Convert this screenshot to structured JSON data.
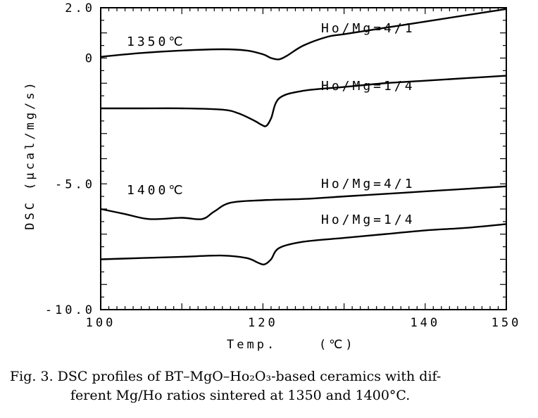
{
  "chart_data": {
    "type": "line",
    "xlabel": "Temp.",
    "xunit": "(℃)",
    "ylabel": "DSC (μcal/mg/s)",
    "xlim": [
      100,
      150
    ],
    "ylim": [
      -10,
      2.0
    ],
    "x_ticks": [
      "100",
      "120",
      "140",
      "150"
    ],
    "y_ticks": [
      "2.0",
      "0",
      "-5.0",
      "-10.0"
    ],
    "annotations": [
      "1350℃",
      "Ho/Mg=4/1",
      "Ho/Mg=1/4",
      "1400℃",
      "Ho/Mg=4/1",
      "Ho/Mg=1/4"
    ],
    "series": [
      {
        "name": "Ho/Mg=4/1 (1350℃)",
        "x": [
          100,
          105,
          110,
          115,
          118,
          120,
          121,
          122,
          123,
          125,
          128,
          130,
          135,
          140,
          145,
          150
        ],
        "y": [
          0.05,
          0.2,
          0.3,
          0.35,
          0.3,
          0.15,
          0.0,
          -0.05,
          0.1,
          0.5,
          0.85,
          0.95,
          1.2,
          1.45,
          1.7,
          1.95
        ]
      },
      {
        "name": "Ho/Mg=1/4 (1350℃)",
        "x": [
          100,
          105,
          110,
          115,
          117,
          119,
          119.8,
          120.4,
          121,
          122,
          125,
          130,
          135,
          140,
          145,
          150
        ],
        "y": [
          -2.0,
          -2.0,
          -2.0,
          -2.05,
          -2.2,
          -2.5,
          -2.65,
          -2.7,
          -2.4,
          -1.6,
          -1.3,
          -1.15,
          -1.0,
          -0.9,
          -0.8,
          -0.7
        ]
      },
      {
        "name": "Ho/Mg=4/1 (1400℃)",
        "x": [
          100,
          103,
          106,
          110,
          112.5,
          114,
          116,
          120,
          125,
          130,
          135,
          140,
          145,
          150
        ],
        "y": [
          -6.0,
          -6.2,
          -6.4,
          -6.35,
          -6.4,
          -6.1,
          -5.75,
          -5.65,
          -5.6,
          -5.5,
          -5.4,
          -5.3,
          -5.2,
          -5.1
        ]
      },
      {
        "name": "Ho/Mg=1/4 (1400℃)",
        "x": [
          100,
          105,
          110,
          115,
          118,
          119.5,
          120.2,
          121,
          122,
          125,
          130,
          135,
          140,
          145,
          150
        ],
        "y": [
          -8.0,
          -7.95,
          -7.9,
          -7.85,
          -7.95,
          -8.15,
          -8.2,
          -8.0,
          -7.55,
          -7.3,
          -7.15,
          -7.0,
          -6.85,
          -6.75,
          -6.6
        ]
      }
    ]
  },
  "caption": {
    "line1": "Fig. 3.   DSC profiles of BT–MgO–Ho₂O₃-based ceramics with dif-",
    "line2": "ferent Mg/Ho ratios sintered at 1350 and 1400°C."
  }
}
